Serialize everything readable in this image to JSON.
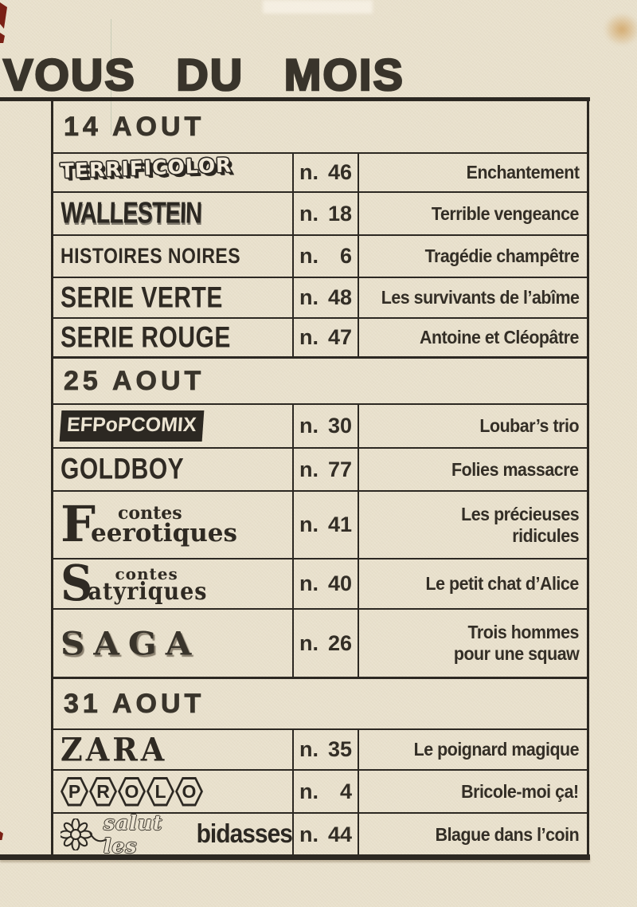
{
  "page": {
    "title": "VOUS DU MOIS",
    "num_prefix": "n.",
    "colors": {
      "paper": "#e9e1cd",
      "ink": "#2f2a23",
      "stain": "#c98f3f",
      "corner_mark": "#7a2015"
    }
  },
  "sections": [
    {
      "date": "14 AOUT",
      "rows": [
        {
          "id": "terrificolor",
          "logo_style": "bubble",
          "logo_text": "TERRIFICOLOR",
          "number": "46",
          "story_lines": [
            "Enchantement"
          ]
        },
        {
          "id": "wallestein",
          "logo_style": "drip",
          "logo_text": "WALLESTEIN",
          "number": "18",
          "story_lines": [
            "Terrible vengeance"
          ]
        },
        {
          "id": "histoires-noires",
          "logo_style": "plain",
          "logo_text": "HISTOIRES NOIRES",
          "number": "6",
          "story_lines": [
            "Tragédie champêtre"
          ]
        },
        {
          "id": "serie-verte",
          "logo_style": "caps",
          "logo_text": "SERIE VERTE",
          "number": "48",
          "story_lines": [
            "Les survivants de l’abîme"
          ]
        },
        {
          "id": "serie-rouge",
          "logo_style": "caps",
          "logo_text": "SERIE ROUGE",
          "number": "47",
          "story_lines": [
            "Antoine et Cléopâtre"
          ]
        }
      ]
    },
    {
      "date": "25 AOUT",
      "rows": [
        {
          "id": "ef-popcomix",
          "logo_style": "efbox",
          "logo_text": "EFPoPCOMIX",
          "number": "30",
          "story_lines": [
            "Loubar’s trio"
          ]
        },
        {
          "id": "goldboy",
          "logo_style": "caps",
          "logo_text": "GOLDBOY",
          "number": "77",
          "story_lines": [
            "Folies massacre"
          ]
        },
        {
          "id": "contes-feerotiques",
          "logo_style": "nouveau",
          "logo_big": "F",
          "logo_top": "contes",
          "logo_bottom": "eerotiques",
          "number": "41",
          "story_lines": [
            "Les précieuses",
            "ridicules"
          ]
        },
        {
          "id": "contes-satyriques",
          "logo_style": "gothic",
          "logo_big": "S",
          "logo_top": "contes",
          "logo_bottom": "atyriques",
          "number": "40",
          "story_lines": [
            "Le petit chat d’Alice"
          ]
        },
        {
          "id": "saga",
          "logo_style": "saga",
          "logo_text": "SAGA",
          "number": "26",
          "story_lines": [
            "Trois hommes",
            "pour une squaw"
          ]
        }
      ]
    },
    {
      "date": "31 AOUT",
      "rows": [
        {
          "id": "zara",
          "logo_style": "zara",
          "logo_text": "ZARA",
          "number": "35",
          "story_lines": [
            "Le poignard magique"
          ]
        },
        {
          "id": "prolo",
          "logo_style": "prolo",
          "logo_text": "PROLO",
          "number": "4",
          "story_lines": [
            "Bricole-moi ça!"
          ]
        },
        {
          "id": "salut-les-bidasses",
          "logo_style": "bidasses",
          "logo_script": "salut les",
          "logo_bold": "bidasses",
          "number": "44",
          "story_lines": [
            "Blague dans l’coin"
          ]
        }
      ]
    }
  ]
}
